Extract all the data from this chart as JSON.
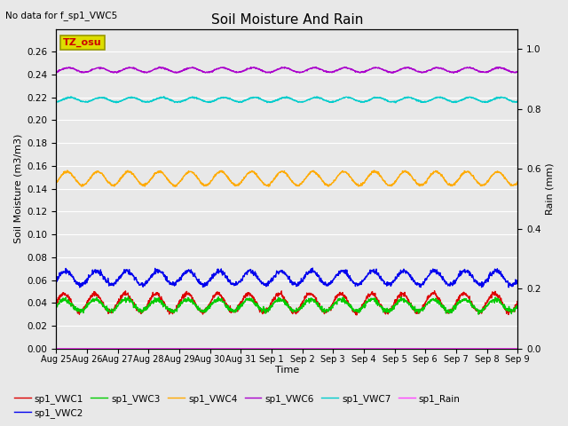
{
  "title": "Soil Moisture And Rain",
  "note": "No data for f_sp1_VWC5",
  "xlabel": "Time",
  "ylabel_left": "Soil Moisture (m3/m3)",
  "ylabel_right": "Rain (mm)",
  "ylim_left": [
    0.0,
    0.28
  ],
  "ylim_right": [
    0.0,
    1.0667
  ],
  "yticks_left": [
    0.0,
    0.02,
    0.04,
    0.06,
    0.08,
    0.1,
    0.12,
    0.14,
    0.16,
    0.18,
    0.2,
    0.22,
    0.24,
    0.26
  ],
  "yticks_right": [
    0.0,
    0.2,
    0.4,
    0.6,
    0.8,
    1.0
  ],
  "duration_days": 15,
  "n_points": 1500,
  "series": {
    "sp1_VWC1": {
      "color": "#dd0000",
      "mean": 0.04,
      "amp": 0.008,
      "period": 1.0,
      "phase": 0.0,
      "noise": 0.001
    },
    "sp1_VWC2": {
      "color": "#0000ee",
      "mean": 0.062,
      "amp": 0.006,
      "period": 1.0,
      "phase": 0.05,
      "noise": 0.001
    },
    "sp1_VWC3": {
      "color": "#00cc00",
      "mean": 0.038,
      "amp": 0.005,
      "period": 1.0,
      "phase": 0.02,
      "noise": 0.001
    },
    "sp1_VWC4": {
      "color": "#ffaa00",
      "mean": 0.149,
      "amp": 0.006,
      "period": 1.0,
      "phase": 0.1,
      "noise": 0.0005
    },
    "sp1_VWC6": {
      "color": "#aa00cc",
      "mean": 0.244,
      "amp": 0.002,
      "period": 1.0,
      "phase": 0.15,
      "noise": 0.0003
    },
    "sp1_VWC7": {
      "color": "#00cccc",
      "mean": 0.218,
      "amp": 0.002,
      "period": 1.0,
      "phase": 0.2,
      "noise": 0.0003
    },
    "sp1_Rain": {
      "color": "#ff44ff",
      "mean": 0.0,
      "amp": 0.0,
      "period": 1.0,
      "phase": 0.0,
      "noise": 0.0
    }
  },
  "legend_box_color": "#dddd00",
  "legend_box_text": "TZ_osu",
  "legend_box_text_color": "#cc0000",
  "bg_color": "#e8e8e8",
  "grid_color": "#ffffff",
  "fig_bg": "#e8e8e8"
}
